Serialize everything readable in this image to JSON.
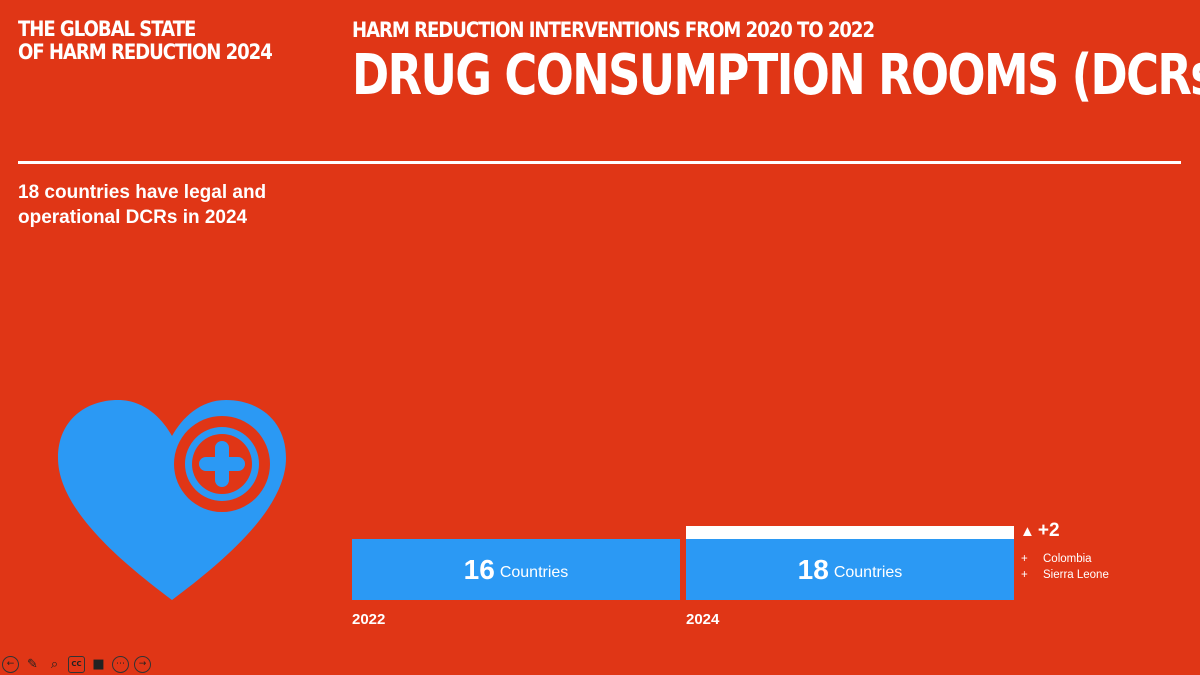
{
  "header": {
    "brand_line1": "THE GLOBAL STATE",
    "brand_line2": "OF HARM REDUCTION 2024",
    "supertitle": "HARM REDUCTION INTERVENTIONS FROM 2020 TO 2022",
    "title": "DRUG CONSUMPTION ROOMS (DCRs)"
  },
  "summary": "18 countries have legal and operational DCRs in 2024",
  "icons": {
    "main": "heart-plus-icon"
  },
  "colors": {
    "background": "#e03616",
    "bar": "#2b99f4",
    "increment": "#ffffff"
  },
  "chart_data": {
    "type": "bar",
    "orientation": "horizontal",
    "categories": [
      "2022",
      "2024"
    ],
    "values": [
      16,
      18
    ],
    "value_unit": "Countries",
    "change": {
      "arrow": "▲",
      "label": "+2",
      "added": [
        "Colombia",
        "Sierra Leone"
      ]
    }
  },
  "controls": [
    {
      "name": "previous-slide-button",
      "icon": "arrow-left-icon",
      "glyph": "←"
    },
    {
      "name": "pen-button",
      "icon": "pencil-icon",
      "glyph": "✎"
    },
    {
      "name": "zoom-button",
      "icon": "magnifier-icon",
      "glyph": "⌕"
    },
    {
      "name": "captions-button",
      "icon": "cc-icon",
      "glyph": "CC"
    },
    {
      "name": "camera-button",
      "icon": "video-camera-icon",
      "glyph": "■"
    },
    {
      "name": "more-button",
      "icon": "more-icon",
      "glyph": "⋯"
    },
    {
      "name": "next-slide-button",
      "icon": "arrow-right-icon",
      "glyph": "→"
    }
  ]
}
